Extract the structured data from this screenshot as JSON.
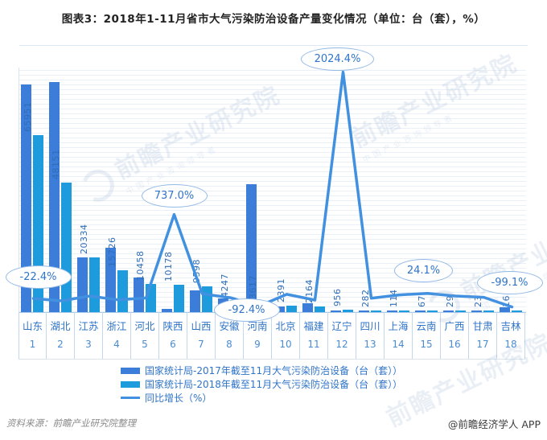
{
  "title": "图表3：2018年1-11月省市大气污染防治设备产量变化情况（单位：台（套），%）",
  "chart_data": {
    "type": "bar",
    "subtype": "grouped bars + year-over-year growth line",
    "categories": [
      "山东",
      "湖北",
      "江苏",
      "浙江",
      "河北",
      "陕西",
      "山西",
      "安徽",
      "河南",
      "北京",
      "福建",
      "辽宁",
      "四川",
      "上海",
      "云南",
      "广西",
      "甘肃",
      "吉林"
    ],
    "category_indices": [
      1,
      2,
      3,
      4,
      5,
      6,
      7,
      8,
      9,
      10,
      11,
      12,
      13,
      14,
      15,
      16,
      17,
      18
    ],
    "series": [
      {
        "name": "国家统计局-2017年截至11月大气污染防治设备（台（套））",
        "type": "bar",
        "color": "#3b7dd8",
        "estimated_from_bar_heights": true,
        "values": [
          84989,
          85900,
          20300,
          24000,
          12800,
          1216,
          8000,
          5000,
          47592,
          2080,
          3400,
          45,
          350,
          104,
          54,
          29,
          26,
          1778
        ]
      },
      {
        "name": "国家统计局-2018年截至11月大气污染防治设备（台（套））",
        "type": "bar",
        "color": "#1e9bdc",
        "show_data_labels": true,
        "values": [
          65951,
          48151,
          20334,
          15726,
          10458,
          10178,
          9598,
          4247,
          3617,
          2391,
          2164,
          956,
          282,
          114,
          67,
          29,
          23,
          16
        ]
      },
      {
        "name": "同比增长（%）",
        "type": "line",
        "color": "#4191e0",
        "labeled_points_only": [
          "-22.4%",
          "737.0%",
          "-92.4%",
          "2024.4%",
          "24.1%",
          "-99.1%"
        ],
        "values": [
          -22.4,
          -43.9,
          0.2,
          -34.5,
          -18.3,
          737.0,
          20.0,
          -15.0,
          -92.4,
          15.0,
          -36.3,
          2024.4,
          -19.4,
          10.0,
          24.1,
          0.0,
          -11.5,
          -99.1
        ]
      }
    ],
    "callouts": [
      {
        "index": 0,
        "category": "山东",
        "label": "-22.4%"
      },
      {
        "index": 5,
        "category": "陕西",
        "label": "737.0%"
      },
      {
        "index": 8,
        "category": "河南",
        "label": "-92.4%"
      },
      {
        "index": 11,
        "category": "辽宁",
        "label": "2024.4%"
      },
      {
        "index": 14,
        "category": "云南",
        "label": "24.1%"
      },
      {
        "index": 17,
        "category": "吉林",
        "label": "-99.1%"
      }
    ],
    "xlabel": "",
    "ylabel": "",
    "y_axis_labels_visible": false,
    "grid": "horizontal-dense",
    "legend_position": "bottom"
  },
  "legend": {
    "items": [
      {
        "label": "国家统计局-2017年截至11月大气污染防治设备（台（套））",
        "swatch": "bar",
        "color": "#3b7dd8"
      },
      {
        "label": "国家统计局-2018年截至11月大气污染防治设备（台（套））",
        "swatch": "bar",
        "color": "#1e9bdc"
      },
      {
        "label": "同比增长（%）",
        "swatch": "line",
        "color": "#4191e0"
      }
    ]
  },
  "footer": {
    "source": "资料来源：前瞻产业研究院整理",
    "credit": "@前瞻经济学人 APP"
  },
  "watermark": {
    "text": "前瞻产业研究院",
    "subtext": "中国产业咨询领导者"
  },
  "colors": {
    "bar_2017": "#3b7dd8",
    "bar_2018": "#1e9bdc",
    "growth_line": "#4191e0",
    "axis_text": "#2f74c8",
    "callout_border": "#93b9e6"
  }
}
